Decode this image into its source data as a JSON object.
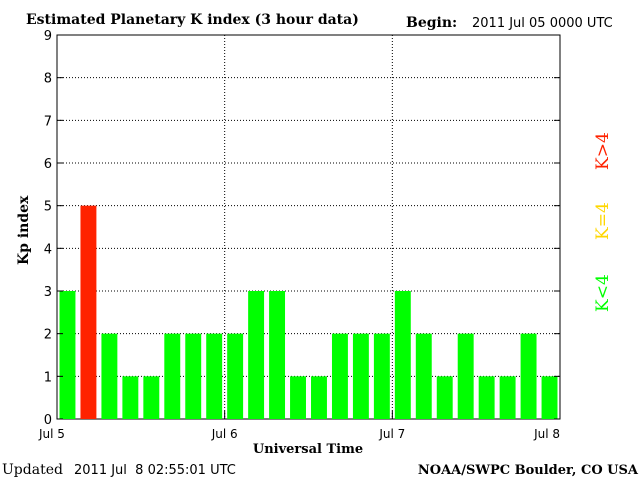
{
  "header": {
    "title": "Estimated Planetary K index (3 hour data)",
    "begin_label": "Begin:",
    "begin_value": "2011 Jul 05 0000 UTC"
  },
  "footer": {
    "updated_label": "Updated",
    "updated_value": "2011 Jul  8 02:55:01 UTC",
    "source": "NOAA/SWPC Boulder, CO USA"
  },
  "legend": [
    {
      "label": "K<4",
      "color": "#00ff00"
    },
    {
      "label": "K=4",
      "color": "#ffd700"
    },
    {
      "label": "K>4",
      "color": "#ff2200"
    }
  ],
  "chart_data": {
    "type": "bar",
    "title": "Estimated Planetary K index (3 hour data)",
    "xlabel": "Universal Time",
    "ylabel": "Kp index",
    "ylim": [
      0,
      9
    ],
    "yticks": [
      "0",
      "1",
      "2",
      "3",
      "4",
      "5",
      "6",
      "7",
      "8",
      "9"
    ],
    "xticks": [
      "Jul 5",
      "Jul 6",
      "Jul 7",
      "Jul 8"
    ],
    "grid": true,
    "series": [
      {
        "values": [
          3,
          5,
          2,
          1,
          1,
          2,
          2,
          2,
          2,
          3,
          3,
          1,
          1,
          2,
          2,
          2,
          3,
          2,
          1,
          2,
          1,
          1,
          2,
          1
        ]
      }
    ],
    "colors": {
      "below_4": "#00ff00",
      "equal_4": "#ffd700",
      "above_4": "#ff2200"
    }
  }
}
